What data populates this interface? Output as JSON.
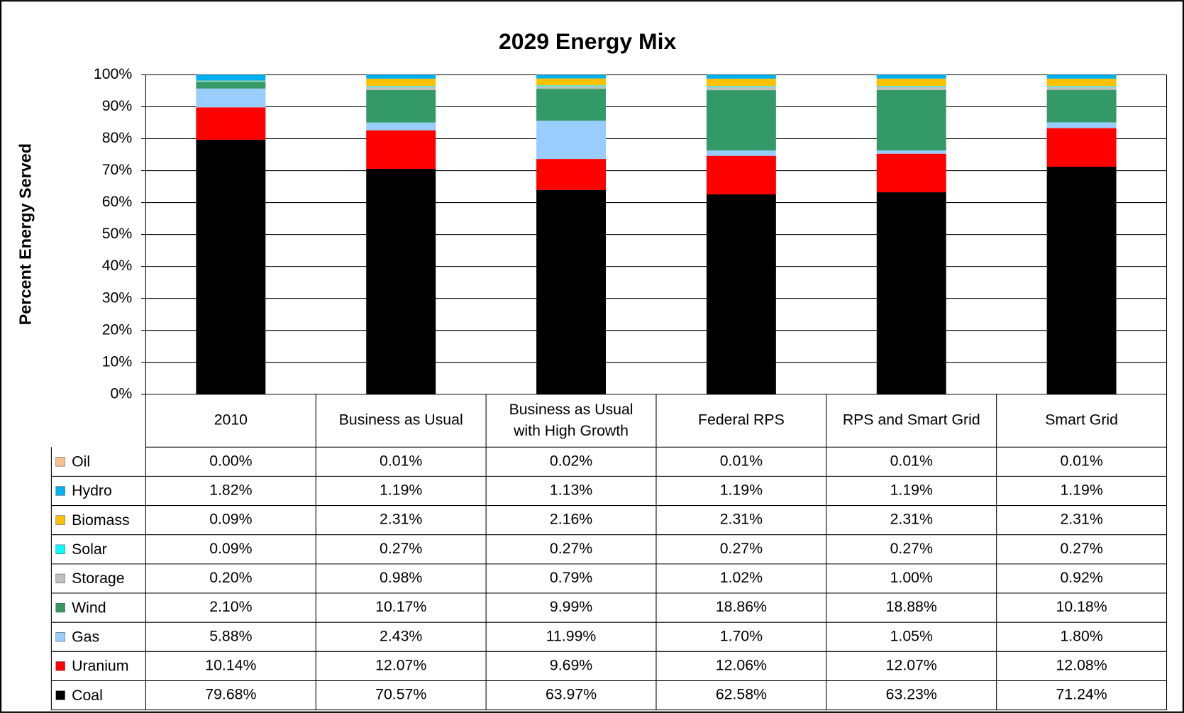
{
  "chart_data": {
    "type": "bar",
    "stacked": true,
    "title": "2029 Energy Mix",
    "y_label": "Percent Energy Served",
    "categories": [
      "2010",
      "Business as Usual",
      "Business as Usual with High Growth",
      "Federal RPS",
      "RPS and Smart Grid",
      "Smart Grid"
    ],
    "ylim": [
      0,
      100
    ],
    "yticks": [
      {
        "value": 0,
        "label": "0%"
      },
      {
        "value": 10,
        "label": "10%"
      },
      {
        "value": 20,
        "label": "20%"
      },
      {
        "value": 30,
        "label": "30%"
      },
      {
        "value": 40,
        "label": "40%"
      },
      {
        "value": 50,
        "label": "50%"
      },
      {
        "value": 60,
        "label": "60%"
      },
      {
        "value": 70,
        "label": "70%"
      },
      {
        "value": 80,
        "label": "80%"
      },
      {
        "value": 90,
        "label": "90%"
      },
      {
        "value": 100,
        "label": "100%"
      }
    ],
    "grid": true,
    "series": [
      {
        "name": "Coal",
        "color": "#000000",
        "values": [
          79.68,
          70.57,
          63.97,
          62.58,
          63.23,
          71.24
        ],
        "value_labels": [
          "79.68%",
          "70.57%",
          "63.97%",
          "62.58%",
          "63.23%",
          "71.24%"
        ]
      },
      {
        "name": "Uranium",
        "color": "#ff0000",
        "values": [
          10.14,
          12.07,
          9.69,
          12.06,
          12.07,
          12.08
        ],
        "value_labels": [
          "10.14%",
          "12.07%",
          "9.69%",
          "12.06%",
          "12.07%",
          "12.08%"
        ]
      },
      {
        "name": "Gas",
        "color": "#99ccff",
        "values": [
          5.88,
          2.43,
          11.99,
          1.7,
          1.05,
          1.8
        ],
        "value_labels": [
          "5.88%",
          "2.43%",
          "11.99%",
          "1.70%",
          "1.05%",
          "1.80%"
        ]
      },
      {
        "name": "Wind",
        "color": "#339966",
        "values": [
          2.1,
          10.17,
          9.99,
          18.86,
          18.88,
          10.18
        ],
        "value_labels": [
          "2.10%",
          "10.17%",
          "9.99%",
          "18.86%",
          "18.88%",
          "10.18%"
        ]
      },
      {
        "name": "Storage",
        "color": "#c0c0c0",
        "values": [
          0.2,
          0.98,
          0.79,
          1.02,
          1.0,
          0.92
        ],
        "value_labels": [
          "0.20%",
          "0.98%",
          "0.79%",
          "1.02%",
          "1.00%",
          "0.92%"
        ]
      },
      {
        "name": "Solar",
        "color": "#00ffff",
        "values": [
          0.09,
          0.27,
          0.27,
          0.27,
          0.27,
          0.27
        ],
        "value_labels": [
          "0.09%",
          "0.27%",
          "0.27%",
          "0.27%",
          "0.27%",
          "0.27%"
        ]
      },
      {
        "name": "Biomass",
        "color": "#ffc000",
        "values": [
          0.09,
          2.31,
          2.16,
          2.31,
          2.31,
          2.31
        ],
        "value_labels": [
          "0.09%",
          "2.31%",
          "2.16%",
          "2.31%",
          "2.31%",
          "2.31%"
        ]
      },
      {
        "name": "Hydro",
        "color": "#00b0f0",
        "values": [
          1.82,
          1.19,
          1.13,
          1.19,
          1.19,
          1.19
        ],
        "value_labels": [
          "1.82%",
          "1.19%",
          "1.13%",
          "1.19%",
          "1.19%",
          "1.19%"
        ]
      },
      {
        "name": "Oil",
        "color": "#fac090",
        "values": [
          0.0,
          0.01,
          0.02,
          0.01,
          0.01,
          0.01
        ],
        "value_labels": [
          "0.00%",
          "0.01%",
          "0.02%",
          "0.01%",
          "0.01%",
          "0.01%"
        ]
      }
    ]
  }
}
